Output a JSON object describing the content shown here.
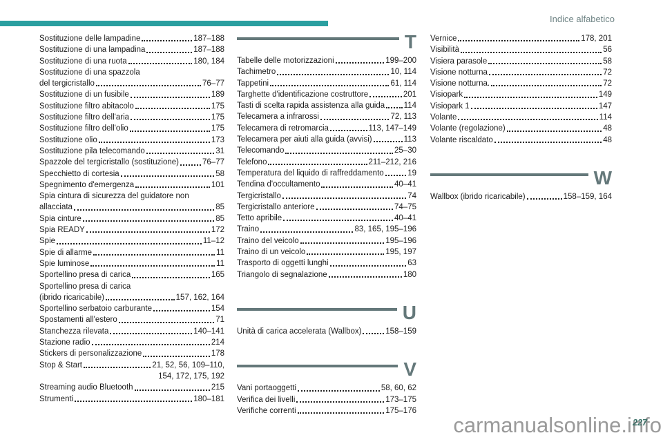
{
  "page": {
    "header_label": "Indice alfabetico",
    "page_number": "227",
    "watermark": "carmanualsonline.info",
    "accent_color": "#2a9fa0",
    "section_color": "#64787a"
  },
  "columns": [
    {
      "sections": [
        {
          "letter": null,
          "entries": [
            {
              "label": "Sostituzione delle lampadine",
              "pages": "187–188"
            },
            {
              "label": "Sostituzione di una lampadina",
              "pages": "187–188"
            },
            {
              "label": "Sostituzione di una ruota",
              "pages": "180, 184"
            },
            {
              "label": "Sostituzione di una spazzola",
              "label2": "del tergicristallo",
              "pages": "76–77"
            },
            {
              "label": "Sostituzione di un fusibile",
              "pages": "189"
            },
            {
              "label": "Sostituzione filtro abitacolo",
              "pages": "175"
            },
            {
              "label": "Sostituzione filtro dell'aria",
              "pages": "175"
            },
            {
              "label": "Sostituzione filtro dell'olio",
              "pages": "175"
            },
            {
              "label": "Sostituzione olio",
              "pages": "173"
            },
            {
              "label": "Sostituzione pila telecomando",
              "pages": "31"
            },
            {
              "label": "Spazzole del tergicristallo (sostituzione)",
              "pages": "76–77"
            },
            {
              "label": "Specchietto di cortesia",
              "pages": "58"
            },
            {
              "label": "Spegnimento d'emergenza",
              "pages": "101"
            },
            {
              "label": "Spia cintura di sicurezza del guidatore non",
              "label2": "allacciata",
              "pages": "85"
            },
            {
              "label": "Spia cinture",
              "pages": "85"
            },
            {
              "label": "Spia READY",
              "pages": "172"
            },
            {
              "label": "Spie",
              "pages": "11–12"
            },
            {
              "label": "Spie di allarme",
              "pages": "11"
            },
            {
              "label": "Spie luminose",
              "pages": "11"
            },
            {
              "label": "Sportellino presa di carica",
              "pages": "165"
            },
            {
              "label": "Sportellino presa di carica",
              "label2": "(ibrido ricaricabile)",
              "pages": "157, 162, 164"
            },
            {
              "label": "Sportellino serbatoio carburante",
              "pages": "154"
            },
            {
              "label": "Spostamenti all'estero",
              "pages": "71"
            },
            {
              "label": "Stanchezza rilevata",
              "pages": "140–141"
            },
            {
              "label": "Stazione radio",
              "pages": "214"
            },
            {
              "label": "Stickers di personalizzazione",
              "pages": "178"
            },
            {
              "label": "Stop & Start",
              "pages": "21, 52, 56, 109–110,",
              "pages2": "154, 172, 175, 192"
            },
            {
              "label": "Streaming audio Bluetooth",
              "pages": "215"
            },
            {
              "label": "Strumenti",
              "pages": "180–181"
            }
          ]
        }
      ]
    },
    {
      "sections": [
        {
          "letter": "T",
          "entries": [
            {
              "label": "Tabelle delle motorizzazioni",
              "pages": "199–200"
            },
            {
              "label": "Tachimetro",
              "pages": "10, 114"
            },
            {
              "label": "Tappetini",
              "pages": "61, 114"
            },
            {
              "label": "Targhette d'identificazione costruttore",
              "pages": "201"
            },
            {
              "label": "Tasti di scelta rapida assistenza alla guida",
              "pages": "114"
            },
            {
              "label": "Telecamera a infrarossi",
              "pages": "72, 113"
            },
            {
              "label": "Telecamera di retromarcia",
              "pages": "113, 147–149"
            },
            {
              "label": "Telecamera per aiuti alla guida (avvisi)",
              "pages": "113"
            },
            {
              "label": "Telecomando",
              "pages": "25–30"
            },
            {
              "label": "Telefono",
              "pages": "211–212, 216"
            },
            {
              "label": "Temperatura del liquido di raffreddamento",
              "pages": "19"
            },
            {
              "label": "Tendina d'occultamento",
              "pages": "40–41"
            },
            {
              "label": "Tergicristallo",
              "pages": "74"
            },
            {
              "label": "Tergicristallo anteriore",
              "pages": "74–75"
            },
            {
              "label": "Tetto apribile",
              "pages": "40–41"
            },
            {
              "label": "Traino",
              "pages": "83, 165, 195–196"
            },
            {
              "label": "Traino del veicolo",
              "pages": "195–196"
            },
            {
              "label": "Traino di un veicolo",
              "pages": "195, 197"
            },
            {
              "label": "Trasporto di oggetti lunghi",
              "pages": "63"
            },
            {
              "label": "Triangolo di segnalazione",
              "pages": "180"
            }
          ]
        },
        {
          "letter": "U",
          "entries": [
            {
              "label": "Unità di carica accelerata (Wallbox)",
              "pages": "158–159"
            }
          ]
        },
        {
          "letter": "V",
          "entries": [
            {
              "label": "Vani portaoggetti",
              "pages": "58, 60, 62"
            },
            {
              "label": "Verifica dei livelli",
              "pages": "173–175"
            },
            {
              "label": "Verifiche correnti",
              "pages": "175–176"
            }
          ]
        }
      ]
    },
    {
      "sections": [
        {
          "letter": null,
          "entries": [
            {
              "label": "Vernice",
              "pages": "178, 201"
            },
            {
              "label": "Visibilità",
              "pages": "56"
            },
            {
              "label": "Visiera parasole",
              "pages": "58"
            },
            {
              "label": "Visione notturna",
              "pages": "72"
            },
            {
              "label": "Visione notturna.",
              "pages": "72"
            },
            {
              "label": "Visiopark",
              "pages": "149"
            },
            {
              "label": "Visiopark 1",
              "pages": "147"
            },
            {
              "label": "Volante",
              "pages": "114"
            },
            {
              "label": "Volante (regolazione)",
              "pages": "48"
            },
            {
              "label": "Volante riscaldato",
              "pages": "48"
            }
          ]
        },
        {
          "letter": "W",
          "entries": [
            {
              "label": "Wallbox (ibrido ricaricabile)",
              "pages": "158–159, 164"
            }
          ]
        }
      ]
    }
  ]
}
